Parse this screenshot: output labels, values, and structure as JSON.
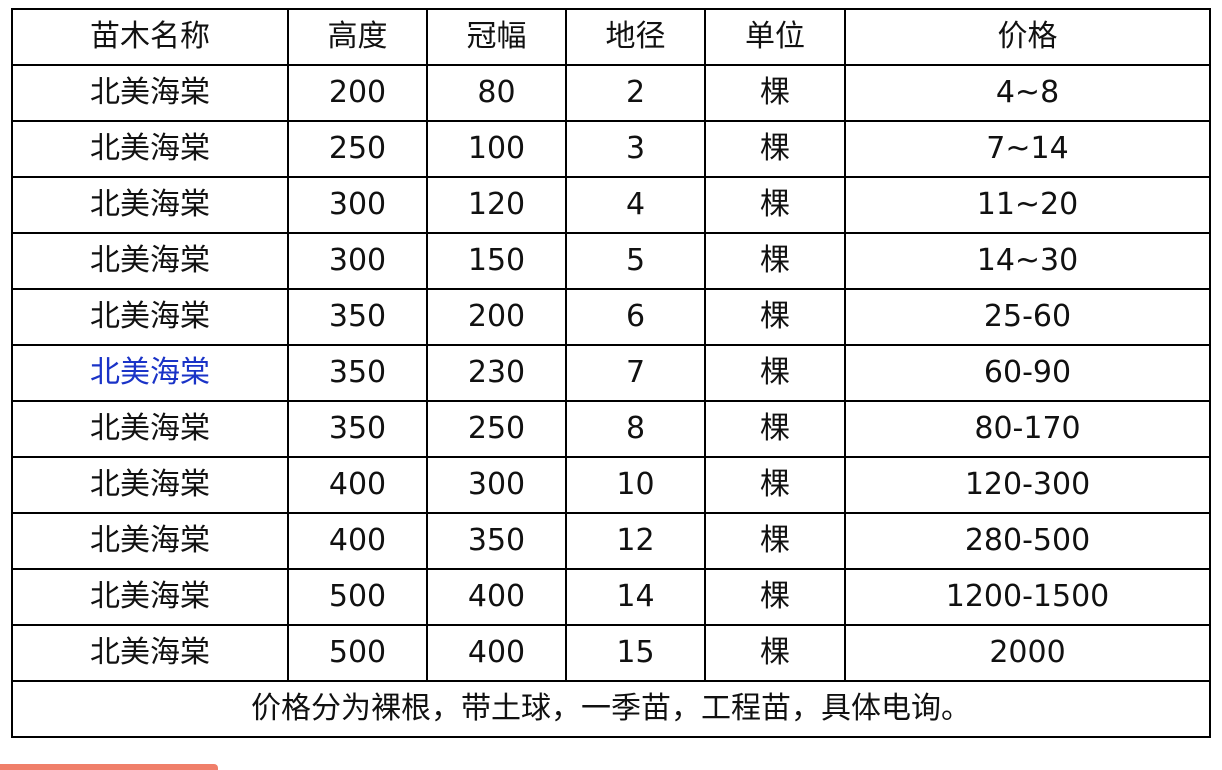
{
  "headers": [
    "苗木名称",
    "高度",
    "冠幅",
    "地径",
    "单位",
    "价格"
  ],
  "rows": [
    [
      "北美海棠",
      "200",
      "80",
      "2",
      "棵",
      "4~8"
    ],
    [
      "北美海棠",
      "250",
      "100",
      "3",
      "棵",
      "7~14"
    ],
    [
      "北美海棠",
      "300",
      "120",
      "4",
      "棵",
      "11~20"
    ],
    [
      "北美海棠",
      "300",
      "150",
      "5",
      "棵",
      "14~30"
    ],
    [
      "北美海棠",
      "350",
      "200",
      "6",
      "棵",
      "25-60"
    ],
    [
      "北美海棠",
      "350",
      "230",
      "7",
      "棵",
      "60-90"
    ],
    [
      "北美海棠",
      "350",
      "250",
      "8",
      "棵",
      "80-170"
    ],
    [
      "北美海棠",
      "400",
      "300",
      "10",
      "棵",
      "120-300"
    ],
    [
      "北美海棠",
      "400",
      "350",
      "12",
      "棵",
      "280-500"
    ],
    [
      "北美海棠",
      "500",
      "400",
      "14",
      "棵",
      "1200-1500"
    ],
    [
      "北美海棠",
      "500",
      "400",
      "15",
      "棵",
      "2000"
    ]
  ],
  "highlighted_row": 5,
  "highlight_color": "#1a33c7",
  "footer_note": "价格分为裸根，带土球，一季苗，工程苗，具体电询。"
}
